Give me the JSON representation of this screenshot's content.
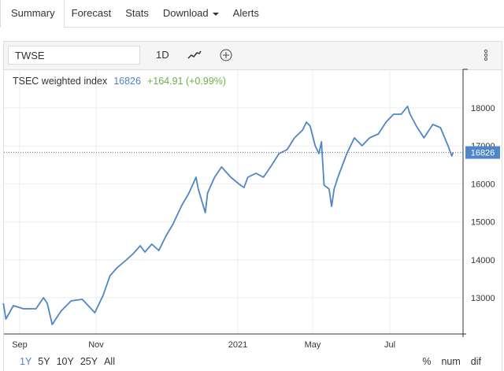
{
  "tabs": [
    {
      "label": "Summary",
      "active": true
    },
    {
      "label": "Forecast"
    },
    {
      "label": "Stats"
    },
    {
      "label": "Download",
      "dropdown": true
    },
    {
      "label": "Alerts"
    }
  ],
  "toolbar": {
    "symbol": "TWSE",
    "interval": "1D",
    "chart_type_icon": "line-chart-icon",
    "add_icon": "plus-circle-icon",
    "menu_icon": "vertical-dots-icon"
  },
  "legend": {
    "name": "TSEC weighted index",
    "price": "16826",
    "change": "+164.91 (+0.99%)"
  },
  "ranges": [
    "1Y",
    "5Y",
    "10Y",
    "25Y",
    "All"
  ],
  "active_range": "1Y",
  "modes": [
    "%",
    "num",
    "dif"
  ],
  "colors": {
    "line": "#4e86c6",
    "change": "#6ab04c",
    "price_label_bg": "#4e86c6"
  },
  "chart_data": {
    "type": "line",
    "title": "TSEC weighted index",
    "x_ticks": [
      {
        "date": "2020-09-01",
        "label": "Sep"
      },
      {
        "date": "2020-11-01",
        "label": "Nov"
      },
      {
        "date": "2021-01-01",
        "label": "2021"
      },
      {
        "date": "2021-05-01",
        "label": "May"
      },
      {
        "date": "2021-07-01",
        "label": "Jul"
      }
    ],
    "y_ticks": [
      13000,
      14000,
      15000,
      16000,
      17000,
      18000
    ],
    "ylim": [
      12045,
      19017
    ],
    "grid": true,
    "current_value": 16826,
    "series": [
      {
        "points": [
          [
            "2020-08-19",
            12855
          ],
          [
            "2020-08-21",
            12439
          ],
          [
            "2020-08-27",
            12792
          ],
          [
            "2020-09-04",
            12709
          ],
          [
            "2020-09-14",
            12709
          ],
          [
            "2020-09-20",
            13000
          ],
          [
            "2020-09-23",
            12854
          ],
          [
            "2020-09-27",
            12294
          ],
          [
            "2020-10-04",
            12647
          ],
          [
            "2020-10-12",
            12916
          ],
          [
            "2020-10-21",
            12958
          ],
          [
            "2020-10-31",
            12605
          ],
          [
            "2020-11-04",
            13062
          ],
          [
            "2020-11-07",
            13581
          ],
          [
            "2020-11-10",
            13789
          ],
          [
            "2020-11-14",
            13996
          ],
          [
            "2020-11-17",
            14161
          ],
          [
            "2020-11-20",
            14369
          ],
          [
            "2020-11-22",
            14203
          ],
          [
            "2020-11-25",
            14410
          ],
          [
            "2020-11-28",
            14244
          ],
          [
            "2020-12-01",
            14618
          ],
          [
            "2020-12-04",
            14929
          ],
          [
            "2020-12-08",
            15448
          ],
          [
            "2020-12-11",
            15759
          ],
          [
            "2020-12-14",
            16174
          ],
          [
            "2020-12-15",
            15863
          ],
          [
            "2020-12-18",
            15240
          ],
          [
            "2020-12-19",
            15759
          ],
          [
            "2020-12-22",
            16174
          ],
          [
            "2020-12-25",
            16444
          ],
          [
            "2020-12-29",
            16174
          ],
          [
            "2021-01-05",
            15967
          ],
          [
            "2021-01-11",
            15904
          ],
          [
            "2021-01-17",
            16174
          ],
          [
            "2021-01-30",
            16278
          ],
          [
            "2021-02-11",
            16174
          ],
          [
            "2021-02-24",
            16485
          ],
          [
            "2021-03-08",
            16796
          ],
          [
            "2021-03-21",
            16900
          ],
          [
            "2021-04-02",
            17212
          ],
          [
            "2021-04-15",
            17419
          ],
          [
            "2021-04-21",
            17627
          ],
          [
            "2021-04-27",
            17523
          ],
          [
            "2021-05-03",
            17004
          ],
          [
            "2021-05-06",
            16796
          ],
          [
            "2021-05-08",
            17108
          ],
          [
            "2021-05-10",
            15967
          ],
          [
            "2021-05-14",
            15863
          ],
          [
            "2021-05-16",
            15406
          ],
          [
            "2021-05-18",
            15863
          ],
          [
            "2021-05-21",
            16174
          ],
          [
            "2021-05-28",
            16796
          ],
          [
            "2021-06-03",
            17212
          ],
          [
            "2021-06-09",
            17004
          ],
          [
            "2021-06-15",
            17212
          ],
          [
            "2021-06-22",
            17315
          ],
          [
            "2021-06-28",
            17627
          ],
          [
            "2021-07-04",
            17834
          ],
          [
            "2021-07-10",
            17834
          ],
          [
            "2021-07-15",
            18041
          ],
          [
            "2021-07-17",
            17834
          ],
          [
            "2021-07-22",
            17523
          ],
          [
            "2021-07-28",
            17212
          ],
          [
            "2021-08-04",
            17564
          ],
          [
            "2021-08-10",
            17481
          ],
          [
            "2021-08-16",
            17004
          ],
          [
            "2021-08-19",
            16734
          ],
          [
            "2021-08-20",
            16826
          ]
        ]
      }
    ]
  }
}
